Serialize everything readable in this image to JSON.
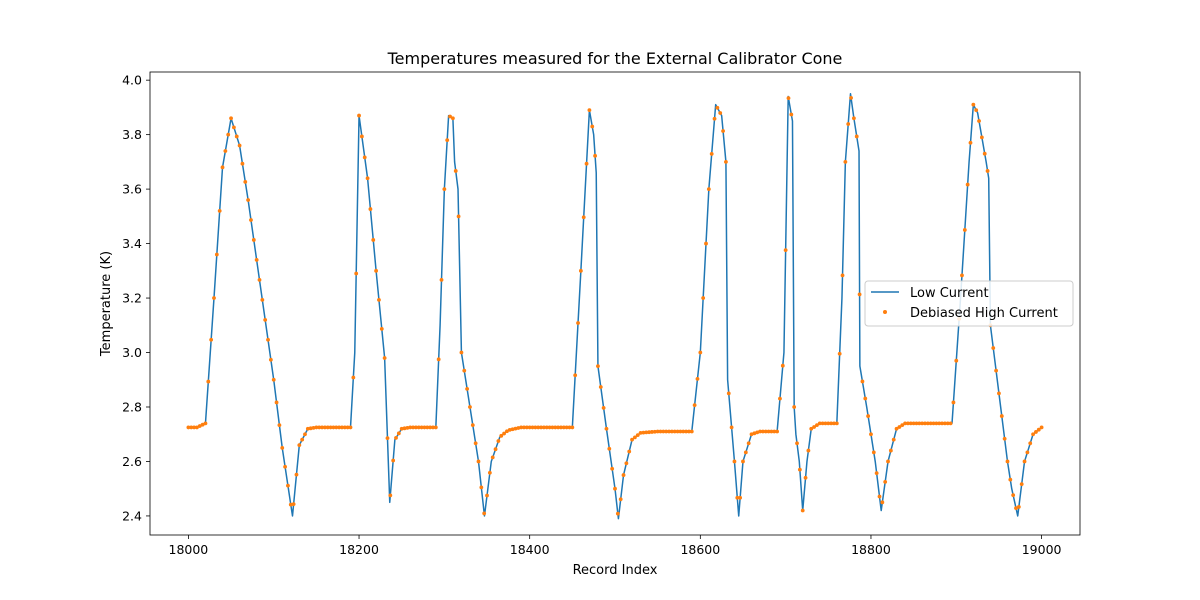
{
  "chart_data": {
    "type": "line",
    "title": "Temperatures measured for the External Calibrator Cone",
    "xlabel": "Record Index",
    "ylabel": "Temperature (K)",
    "xlim": [
      17955,
      19045
    ],
    "ylim": [
      2.33,
      4.03
    ],
    "xticks": [
      18000,
      18200,
      18400,
      18600,
      18800,
      19000
    ],
    "yticks": [
      2.4,
      2.6,
      2.8,
      3.0,
      3.2,
      3.4,
      3.6,
      3.8,
      4.0
    ],
    "xtick_labels": [
      "18000",
      "18200",
      "18400",
      "18600",
      "18800",
      "19000"
    ],
    "ytick_labels": [
      "2.4",
      "2.6",
      "2.8",
      "3.0",
      "3.2",
      "3.4",
      "3.6",
      "3.8",
      "4.0"
    ],
    "legend": {
      "position": "center-right",
      "entries": [
        "Low Current",
        "Debiased High Current"
      ]
    },
    "colors": {
      "line": "#1f77b4",
      "points": "#ff7f0e"
    },
    "series": [
      {
        "name": "Low Current",
        "style": "line",
        "x": [
          18000,
          18010,
          18020,
          18030,
          18040,
          18050,
          18060,
          18070,
          18080,
          18090,
          18100,
          18110,
          18122,
          18130,
          18140,
          18150,
          18160,
          18170,
          18180,
          18190,
          18195,
          18200,
          18210,
          18220,
          18230,
          18236,
          18242,
          18250,
          18260,
          18270,
          18280,
          18290,
          18295,
          18300,
          18305,
          18310,
          18312,
          18316,
          18320,
          18330,
          18340,
          18347,
          18355,
          18365,
          18375,
          18390,
          18410,
          18430,
          18450,
          18460,
          18470,
          18475,
          18478,
          18480,
          18490,
          18500,
          18504,
          18510,
          18520,
          18530,
          18550,
          18570,
          18590,
          18600,
          18610,
          18618,
          18625,
          18630,
          18632,
          18640,
          18645,
          18650,
          18660,
          18670,
          18680,
          18690,
          18698,
          18703,
          18708,
          18710,
          18712,
          18716,
          18720,
          18725,
          18730,
          18740,
          18750,
          18760,
          18766,
          18770,
          18776,
          18780,
          18786,
          18787,
          18795,
          18805,
          18812,
          18820,
          18830,
          18840,
          18860,
          18880,
          18895,
          18905,
          18915,
          18920,
          18925,
          18935,
          18938,
          18940,
          18950,
          18960,
          18965,
          18972,
          18980,
          18990,
          19000
        ],
        "y": [
          2.725,
          2.725,
          2.74,
          3.2,
          3.68,
          3.86,
          3.76,
          3.56,
          3.34,
          3.12,
          2.9,
          2.65,
          2.4,
          2.66,
          2.72,
          2.725,
          2.725,
          2.725,
          2.725,
          2.725,
          3.0,
          3.87,
          3.64,
          3.3,
          2.98,
          2.45,
          2.68,
          2.72,
          2.725,
          2.725,
          2.725,
          2.725,
          3.1,
          3.6,
          3.87,
          3.86,
          3.7,
          3.6,
          3.0,
          2.8,
          2.6,
          2.4,
          2.6,
          2.69,
          2.715,
          2.725,
          2.725,
          2.725,
          2.725,
          3.3,
          3.89,
          3.8,
          3.66,
          2.95,
          2.72,
          2.5,
          2.39,
          2.55,
          2.68,
          2.705,
          2.71,
          2.71,
          2.71,
          3.0,
          3.6,
          3.91,
          3.87,
          3.7,
          2.9,
          2.6,
          2.4,
          2.6,
          2.7,
          2.71,
          2.71,
          2.71,
          3.0,
          3.94,
          3.85,
          2.8,
          2.7,
          2.6,
          2.42,
          2.6,
          2.72,
          2.74,
          2.74,
          2.74,
          3.2,
          3.7,
          3.95,
          3.86,
          3.74,
          2.95,
          2.8,
          2.6,
          2.42,
          2.6,
          2.72,
          2.74,
          2.74,
          2.74,
          2.74,
          3.2,
          3.7,
          3.91,
          3.88,
          3.7,
          3.64,
          3.1,
          2.85,
          2.6,
          2.5,
          2.4,
          2.6,
          2.7,
          2.725
        ]
      },
      {
        "name": "Debiased High Current",
        "style": "scatter",
        "same_x_as": "Low Current"
      }
    ]
  }
}
